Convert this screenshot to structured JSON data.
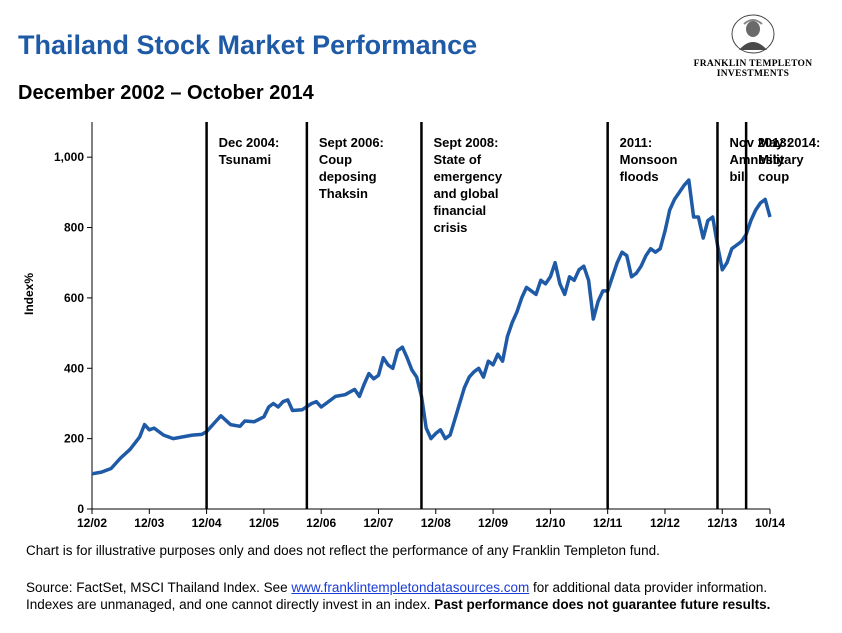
{
  "header": {
    "title": "Thailand Stock Market Performance",
    "subtitle": "December 2002 – October 2014",
    "logo_line1": "FRANKLIN TEMPLETON",
    "logo_line2": "INVESTMENTS"
  },
  "footer": {
    "disclaimer": "Chart is for illustrative purposes only and does not reflect the performance of any Franklin Templeton fund.",
    "source_prefix": "Source: FactSet, MSCI Thailand Index.  See ",
    "source_link": "www.franklintempletondatasources.com",
    "source_mid": " for additional data provider information. Indexes are unmanaged, and one cannot directly invest in an index. ",
    "source_bold": "Past performance does not guarantee future results."
  },
  "colors": {
    "title": "#1f5aa6",
    "series": "#1f5aa6",
    "event_lines": "#000000"
  },
  "chart_data": {
    "type": "line",
    "ylabel": "Index%",
    "ylim": [
      0,
      1100
    ],
    "yticks": [
      0,
      200,
      400,
      600,
      800,
      1000
    ],
    "ytick_labels": [
      "0",
      "200",
      "400",
      "600",
      "800",
      "1,000"
    ],
    "xlim": [
      "2002-12",
      "2014-10"
    ],
    "xticks": [
      "2002-12",
      "2003-12",
      "2004-12",
      "2005-12",
      "2006-12",
      "2007-12",
      "2008-12",
      "2009-12",
      "2010-12",
      "2011-12",
      "2012-12",
      "2013-12",
      "2014-10"
    ],
    "xtick_labels": [
      "12/02",
      "12/03",
      "12/04",
      "12/05",
      "12/06",
      "12/07",
      "12/08",
      "12/09",
      "12/10",
      "12/11",
      "12/12",
      "12/13",
      "10/14"
    ],
    "grid": false,
    "series": [
      {
        "points": [
          [
            "2002-12",
            100
          ],
          [
            "2003-02",
            105
          ],
          [
            "2003-04",
            115
          ],
          [
            "2003-06",
            145
          ],
          [
            "2003-08",
            170
          ],
          [
            "2003-10",
            205
          ],
          [
            "2003-11",
            240
          ],
          [
            "2003-12",
            225
          ],
          [
            "2004-01",
            230
          ],
          [
            "2004-03",
            210
          ],
          [
            "2004-05",
            200
          ],
          [
            "2004-07",
            205
          ],
          [
            "2004-09",
            210
          ],
          [
            "2004-11",
            212
          ],
          [
            "2004-12",
            220
          ],
          [
            "2005-02",
            250
          ],
          [
            "2005-03",
            265
          ],
          [
            "2005-05",
            240
          ],
          [
            "2005-07",
            235
          ],
          [
            "2005-08",
            250
          ],
          [
            "2005-10",
            248
          ],
          [
            "2005-12",
            262
          ],
          [
            "2006-01",
            290
          ],
          [
            "2006-02",
            300
          ],
          [
            "2006-03",
            290
          ],
          [
            "2006-04",
            305
          ],
          [
            "2006-05",
            310
          ],
          [
            "2006-06",
            280
          ],
          [
            "2006-08",
            282
          ],
          [
            "2006-10",
            300
          ],
          [
            "2006-11",
            305
          ],
          [
            "2006-12",
            290
          ],
          [
            "2007-01",
            300
          ],
          [
            "2007-03",
            320
          ],
          [
            "2007-05",
            325
          ],
          [
            "2007-07",
            340
          ],
          [
            "2007-08",
            320
          ],
          [
            "2007-09",
            355
          ],
          [
            "2007-10",
            385
          ],
          [
            "2007-11",
            370
          ],
          [
            "2007-12",
            380
          ],
          [
            "2008-01",
            430
          ],
          [
            "2008-02",
            410
          ],
          [
            "2008-03",
            400
          ],
          [
            "2008-04",
            450
          ],
          [
            "2008-05",
            460
          ],
          [
            "2008-06",
            430
          ],
          [
            "2008-07",
            395
          ],
          [
            "2008-08",
            375
          ],
          [
            "2008-09",
            320
          ],
          [
            "2008-10",
            230
          ],
          [
            "2008-11",
            200
          ],
          [
            "2008-12",
            215
          ],
          [
            "2009-01",
            225
          ],
          [
            "2009-02",
            200
          ],
          [
            "2009-03",
            210
          ],
          [
            "2009-04",
            255
          ],
          [
            "2009-05",
            300
          ],
          [
            "2009-06",
            345
          ],
          [
            "2009-07",
            375
          ],
          [
            "2009-08",
            390
          ],
          [
            "2009-09",
            400
          ],
          [
            "2009-10",
            375
          ],
          [
            "2009-11",
            420
          ],
          [
            "2009-12",
            410
          ],
          [
            "2010-01",
            440
          ],
          [
            "2010-02",
            420
          ],
          [
            "2010-03",
            490
          ],
          [
            "2010-04",
            530
          ],
          [
            "2010-05",
            560
          ],
          [
            "2010-06",
            600
          ],
          [
            "2010-07",
            630
          ],
          [
            "2010-08",
            620
          ],
          [
            "2010-09",
            610
          ],
          [
            "2010-10",
            650
          ],
          [
            "2010-11",
            640
          ],
          [
            "2010-12",
            660
          ],
          [
            "2011-01",
            700
          ],
          [
            "2011-02",
            640
          ],
          [
            "2011-03",
            610
          ],
          [
            "2011-04",
            660
          ],
          [
            "2011-05",
            650
          ],
          [
            "2011-06",
            680
          ],
          [
            "2011-07",
            690
          ],
          [
            "2011-08",
            650
          ],
          [
            "2011-09",
            540
          ],
          [
            "2011-10",
            590
          ],
          [
            "2011-11",
            620
          ],
          [
            "2011-12",
            620
          ],
          [
            "2012-01",
            660
          ],
          [
            "2012-02",
            700
          ],
          [
            "2012-03",
            730
          ],
          [
            "2012-04",
            720
          ],
          [
            "2012-05",
            660
          ],
          [
            "2012-06",
            670
          ],
          [
            "2012-07",
            690
          ],
          [
            "2012-08",
            720
          ],
          [
            "2012-09",
            740
          ],
          [
            "2012-10",
            730
          ],
          [
            "2012-11",
            740
          ],
          [
            "2012-12",
            790
          ],
          [
            "2013-01",
            850
          ],
          [
            "2013-02",
            880
          ],
          [
            "2013-03",
            900
          ],
          [
            "2013-04",
            920
          ],
          [
            "2013-05",
            935
          ],
          [
            "2013-06",
            830
          ],
          [
            "2013-07",
            830
          ],
          [
            "2013-08",
            770
          ],
          [
            "2013-09",
            820
          ],
          [
            "2013-10",
            830
          ],
          [
            "2013-11",
            750
          ],
          [
            "2013-12",
            680
          ],
          [
            "2014-01",
            700
          ],
          [
            "2014-02",
            740
          ],
          [
            "2014-03",
            750
          ],
          [
            "2014-04",
            760
          ],
          [
            "2014-05",
            780
          ],
          [
            "2014-06",
            820
          ],
          [
            "2014-07",
            850
          ],
          [
            "2014-08",
            870
          ],
          [
            "2014-09",
            880
          ],
          [
            "2014-10",
            830
          ]
        ]
      }
    ],
    "events": [
      {
        "date": "2004-12",
        "text": "Dec 2004:\nTsunami"
      },
      {
        "date": "2006-09",
        "text": "Sept 2006:\nCoup\ndeposing\nThaksin"
      },
      {
        "date": "2008-09",
        "text": "Sept 2008:\nState of\nemergency\nand global\nfinancial\ncrisis"
      },
      {
        "date": "2011-12",
        "text": "2011:\nMonsoon\nfloods"
      },
      {
        "date": "2013-11",
        "text": "Nov 2013:\nAmnesty\nbill"
      },
      {
        "date": "2014-05",
        "text": "May 2014:\nMilitary\ncoup"
      }
    ]
  }
}
